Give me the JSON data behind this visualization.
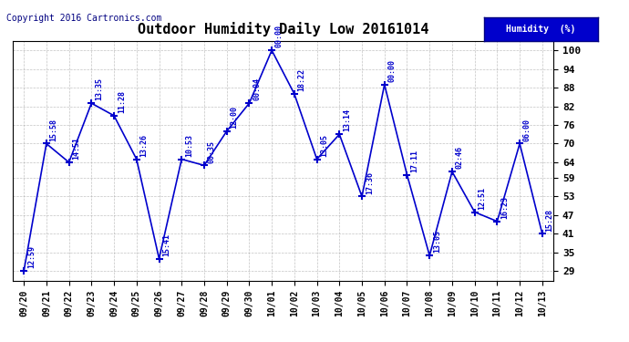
{
  "title": "Outdoor Humidity Daily Low 20161014",
  "copyright": "Copyright 2016 Cartronics.com",
  "legend_label": "Humidity  (%)",
  "x_labels": [
    "09/20",
    "09/21",
    "09/22",
    "09/23",
    "09/24",
    "09/25",
    "09/26",
    "09/27",
    "09/28",
    "09/29",
    "09/30",
    "10/01",
    "10/02",
    "10/03",
    "10/04",
    "10/05",
    "10/06",
    "10/07",
    "10/08",
    "10/09",
    "10/10",
    "10/11",
    "10/12",
    "10/13"
  ],
  "y_values": [
    29,
    70,
    64,
    83,
    79,
    65,
    33,
    65,
    63,
    74,
    83,
    100,
    86,
    65,
    73,
    53,
    89,
    60,
    34,
    61,
    48,
    45,
    70,
    41
  ],
  "point_labels": [
    "12:59",
    "15:58",
    "14:51",
    "13:35",
    "11:28",
    "13:26",
    "15:41",
    "10:53",
    "00:35",
    "12:00",
    "00:04",
    "00:00",
    "18:22",
    "13:05",
    "13:14",
    "17:36",
    "00:00",
    "17:11",
    "13:05",
    "02:46",
    "12:51",
    "16:23",
    "06:00",
    "15:28"
  ],
  "line_color": "#0000cc",
  "marker_color": "#0000cc",
  "bg_color": "#ffffff",
  "grid_color": "#aaaaaa",
  "title_color": "#000000",
  "label_color": "#0000cc",
  "y_ticks": [
    29,
    35,
    41,
    47,
    53,
    59,
    64,
    70,
    76,
    82,
    88,
    94,
    100
  ],
  "ylim": [
    26,
    103
  ],
  "figsize": [
    6.9,
    3.75
  ],
  "dpi": 100
}
